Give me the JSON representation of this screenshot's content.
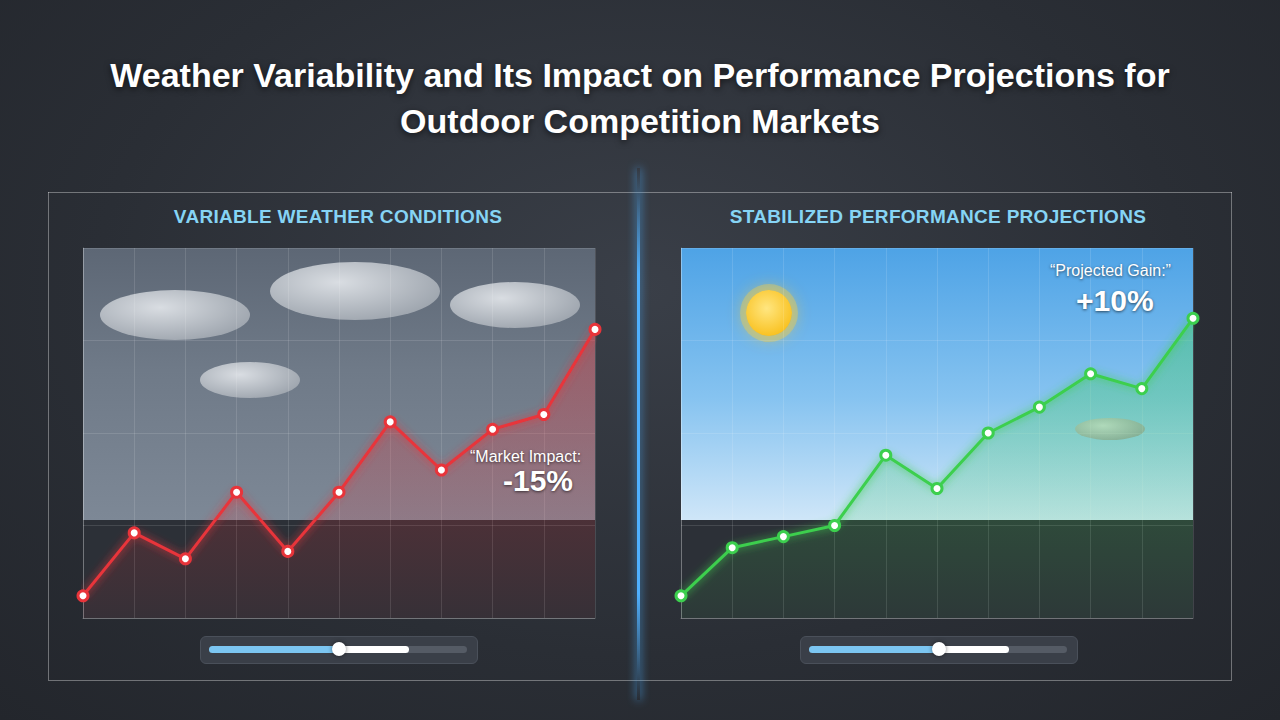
{
  "title": "Weather Variability and Its Impact on Performance Projections for Outdoor Competition Markets",
  "chart_data": [
    {
      "type": "line",
      "title": "VARIABLE WEATHER CONDITIONS",
      "categories": [
        null,
        null,
        null,
        null,
        null,
        null,
        null,
        null,
        null,
        null,
        null
      ],
      "values": [
        6,
        23,
        16,
        34,
        18,
        34,
        53,
        40,
        51,
        55,
        78
      ],
      "color": "#e8343a",
      "marker": "circle",
      "ylim": [
        0,
        100
      ],
      "yticks": [
        0,
        25,
        50,
        75,
        100
      ],
      "grid": true,
      "tick_labels": false,
      "annotations": [
        "“Market Impact:",
        "-15%"
      ]
    },
    {
      "type": "line",
      "title": "STABILIZED PERFORMANCE PROJECTIONS",
      "categories": [
        null,
        null,
        null,
        null,
        null,
        null,
        null,
        null,
        null,
        null,
        null
      ],
      "values": [
        6,
        19,
        22,
        25,
        44,
        35,
        50,
        57,
        66,
        62,
        81
      ],
      "color": "#3ccf4e",
      "marker": "circle",
      "ylim": [
        0,
        100
      ],
      "yticks": [
        0,
        25,
        50,
        75,
        100
      ],
      "grid": true,
      "tick_labels": false,
      "annotations": [
        "“Projected Gain:”",
        "+10%"
      ]
    }
  ]
}
